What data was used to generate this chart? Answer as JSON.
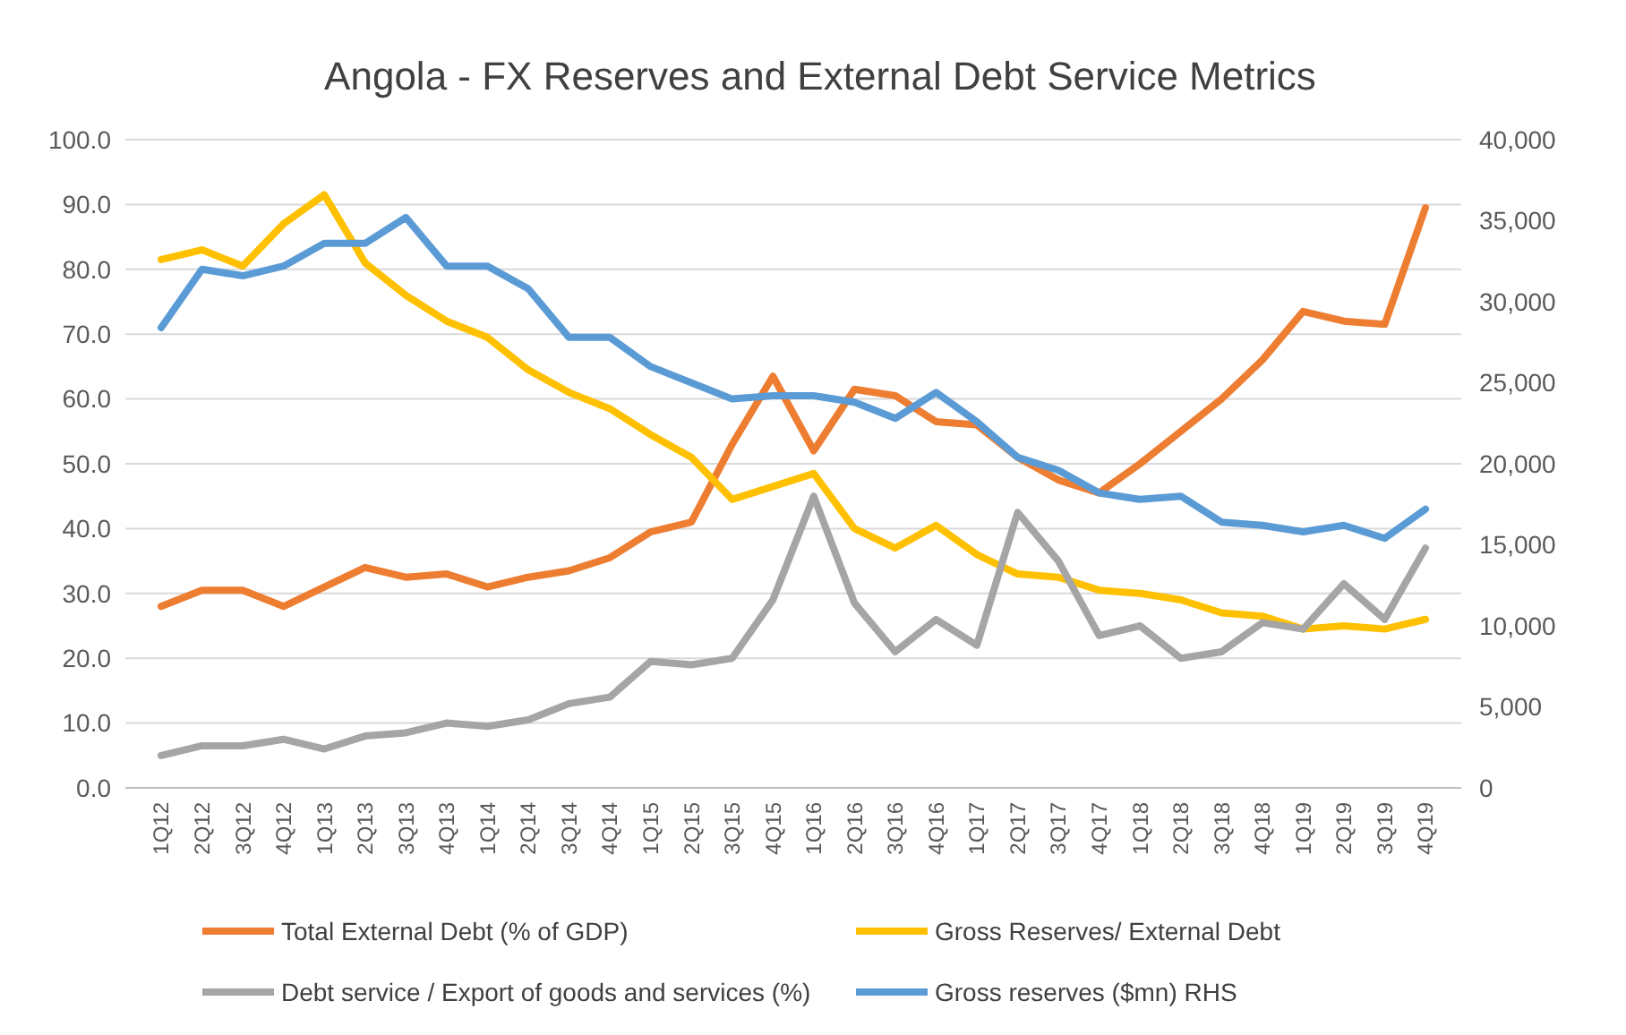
{
  "chart_data": {
    "type": "line",
    "title": "Angola -  FX Reserves and External Debt Service Metrics",
    "categories": [
      "1Q12",
      "2Q12",
      "3Q12",
      "4Q12",
      "1Q13",
      "2Q13",
      "3Q13",
      "4Q13",
      "1Q14",
      "2Q14",
      "3Q14",
      "4Q14",
      "1Q15",
      "2Q15",
      "3Q15",
      "4Q15",
      "1Q16",
      "2Q16",
      "3Q16",
      "4Q16",
      "1Q17",
      "2Q17",
      "3Q17",
      "4Q17",
      "1Q18",
      "2Q18",
      "3Q18",
      "4Q18",
      "1Q19",
      "2Q19",
      "3Q19",
      "4Q19"
    ],
    "series": [
      {
        "name": "Total External Debt (% of GDP)",
        "color": "#ed7d31",
        "values": [
          28,
          30.5,
          30.5,
          28,
          31,
          34,
          32.5,
          33,
          31,
          32.5,
          33.5,
          35.5,
          39.5,
          41,
          53,
          63.5,
          52,
          61.5,
          60.5,
          56.5,
          56,
          51,
          47.5,
          45.5,
          50,
          55,
          60,
          66,
          73.5,
          72,
          71.5,
          89.5
        ]
      },
      {
        "name": "Gross Reserves/ External Debt",
        "color": "#ffc000",
        "values": [
          81.5,
          83,
          80.5,
          87,
          91.5,
          81,
          76,
          72,
          69.5,
          64.5,
          61,
          58.5,
          54.5,
          51,
          44.5,
          46.5,
          48.5,
          40,
          37,
          40.5,
          36,
          33,
          32.5,
          30.5,
          30,
          29,
          27,
          26.5,
          24.5,
          25,
          24.5,
          26
        ]
      },
      {
        "name": "Debt service / Export of goods and services (%)",
        "color": "#a5a5a5",
        "values": [
          5,
          6.5,
          6.5,
          7.5,
          6,
          8,
          8.5,
          10,
          9.5,
          10.5,
          13,
          14,
          19.5,
          19,
          20,
          29,
          45,
          28.5,
          21,
          26,
          22,
          42.5,
          35,
          23.5,
          25,
          20,
          21,
          25.5,
          24.5,
          31.5,
          26,
          37
        ]
      },
      {
        "name": "Gross reserves ($mn) RHS",
        "color": "#5b9bd5",
        "axis": "y2",
        "values": [
          28400,
          32000,
          31600,
          32200,
          33600,
          33600,
          35200,
          32200,
          32200,
          30800,
          27800,
          27800,
          26000,
          25000,
          24000,
          24200,
          24200,
          23800,
          22800,
          24400,
          22600,
          20400,
          19600,
          18200,
          17800,
          18000,
          16400,
          16200,
          15800,
          16200,
          15400,
          17200
        ]
      }
    ],
    "ylim": [
      0,
      100
    ],
    "yticks": [
      {
        "value": 0,
        "label": "0.0"
      },
      {
        "value": 10,
        "label": "10.0"
      },
      {
        "value": 20,
        "label": "20.0"
      },
      {
        "value": 30,
        "label": "30.0"
      },
      {
        "value": 40,
        "label": "40.0"
      },
      {
        "value": 50,
        "label": "50.0"
      },
      {
        "value": 60,
        "label": "60.0"
      },
      {
        "value": 70,
        "label": "70.0"
      },
      {
        "value": 80,
        "label": "80.0"
      },
      {
        "value": 90,
        "label": "90.0"
      },
      {
        "value": 100,
        "label": "100.0"
      }
    ],
    "y2lim": [
      0,
      40000
    ],
    "y2ticks": [
      0,
      {
        "value": 5000,
        "label": "5,000"
      },
      {
        "value": 10000,
        "label": "10,000"
      },
      {
        "value": 15000,
        "label": "15,000"
      },
      {
        "value": 20000,
        "label": "20,000"
      },
      {
        "value": 25000,
        "label": "25,000"
      },
      {
        "value": 30000,
        "label": "30,000"
      },
      {
        "value": 35000,
        "label": "35,000"
      },
      {
        "value": 40000,
        "label": "40,000"
      }
    ],
    "grid": "y",
    "legend": "bottom",
    "marker": "none",
    "line_style": "solid"
  }
}
